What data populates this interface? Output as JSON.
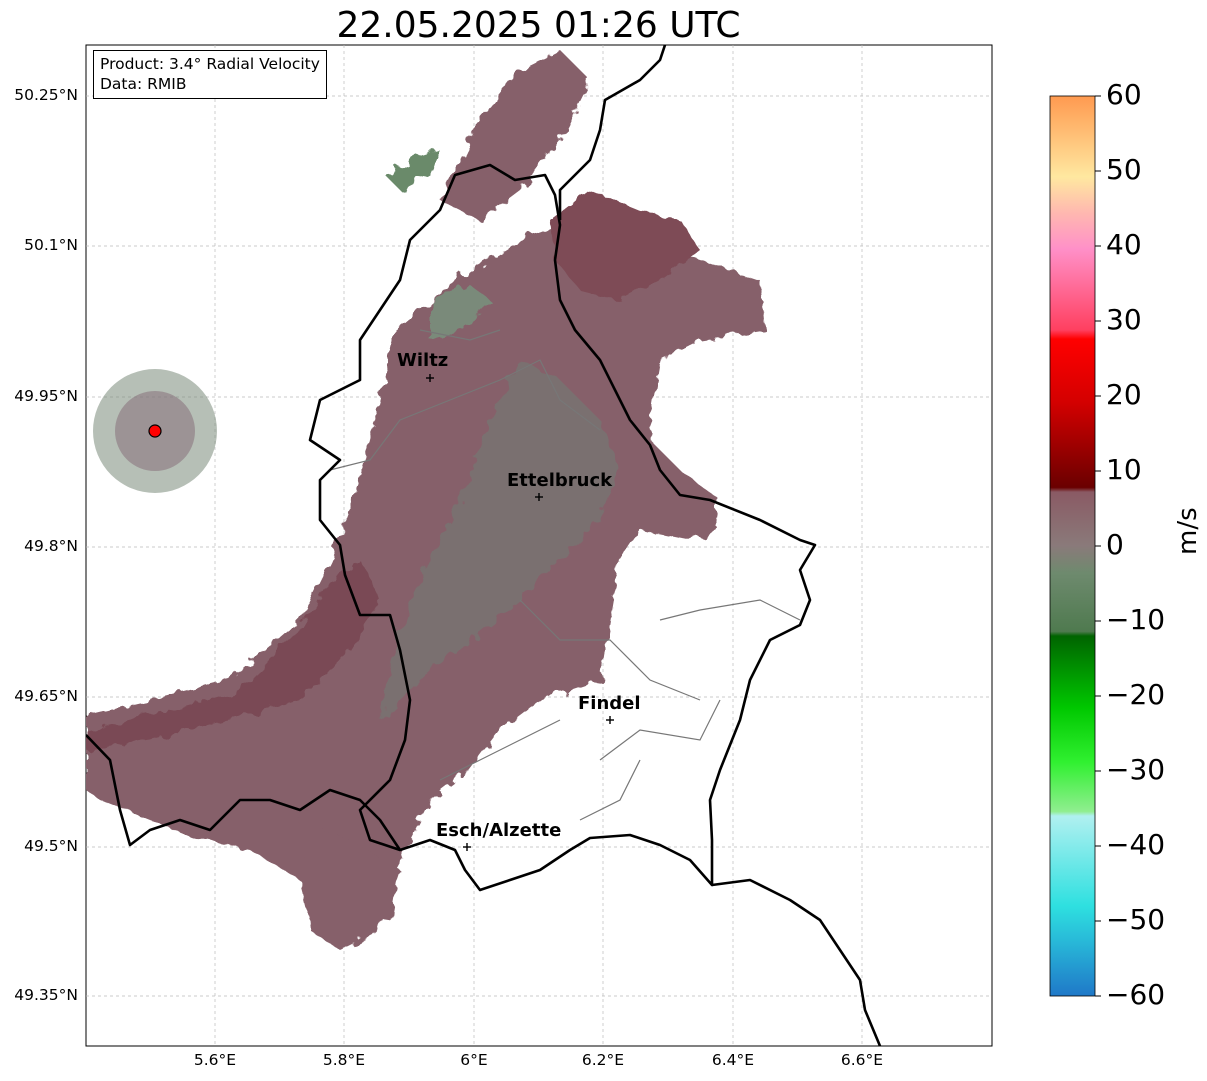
{
  "title": "22.05.2025 01:26 UTC",
  "infobox": {
    "product": "Product: 3.4° Radial Velocity",
    "data": "Data: RMIB"
  },
  "axes": {
    "y_ticks": [
      "50.25°N",
      "50.1°N",
      "49.95°N",
      "49.8°N",
      "49.65°N",
      "49.5°N",
      "49.35°N"
    ],
    "x_ticks": [
      "5.6°E",
      "5.8°E",
      "6°E",
      "6.2°E",
      "6.4°E",
      "6.6°E"
    ],
    "lon_range": [
      5.4,
      6.8
    ],
    "lat_range": [
      49.3,
      50.3
    ],
    "grid": true
  },
  "cities": [
    {
      "name": "Wiltz",
      "lon": 5.93,
      "lat": 49.97
    },
    {
      "name": "Ettelbruck",
      "lon": 6.1,
      "lat": 49.85
    },
    {
      "name": "Findel",
      "lon": 6.21,
      "lat": 49.63
    },
    {
      "name": "Esch/Alzette",
      "lon": 5.99,
      "lat": 49.5
    }
  ],
  "radar_site": {
    "lon": 5.505,
    "lat": 49.915,
    "color": "#ff0000"
  },
  "colorbar": {
    "label": "m/s",
    "min": -60,
    "max": 60,
    "ticks": [
      "60",
      "50",
      "40",
      "30",
      "20",
      "10",
      "0",
      "−10",
      "−20",
      "−30",
      "−40",
      "−50",
      "−60"
    ],
    "colors": {
      "approach_strong": "#1f78c8",
      "approach_mid": "#2ee0e0",
      "approach_light": "#b0f0f0",
      "approach_green_light": "#90ee90",
      "approach_green": "#00c800",
      "approach_green_dark": "#006400",
      "near_zero_green": "#5e8a5e",
      "near_zero": "#8a6a70",
      "recede_dark": "#7a0000",
      "recede_red": "#ff0000",
      "recede_pink": "#ff8ec8",
      "recede_light": "#ffd8a0",
      "recede_strong": "#ff9a50"
    }
  }
}
